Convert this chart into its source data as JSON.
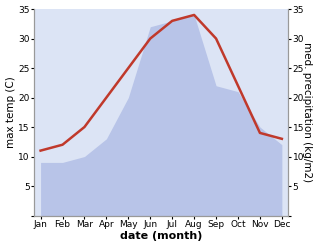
{
  "months": [
    "Jan",
    "Feb",
    "Mar",
    "Apr",
    "May",
    "Jun",
    "Jul",
    "Aug",
    "Sep",
    "Oct",
    "Nov",
    "Dec"
  ],
  "temperature": [
    11,
    12,
    15,
    20,
    25,
    30,
    33,
    34,
    30,
    22,
    14,
    13
  ],
  "precipitation": [
    9,
    9,
    10,
    13,
    20,
    32,
    33,
    34,
    22,
    21,
    15,
    12
  ],
  "temp_color": "#c0392b",
  "precip_fill_color": "#b8c4e8",
  "plot_bg_color": "#dce4f5",
  "background_color": "#ffffff",
  "xlabel": "date (month)",
  "ylabel_left": "max temp (C)",
  "ylabel_right": "med. precipitation (kg/m2)",
  "ylim": [
    0,
    35
  ],
  "yticks": [
    0,
    5,
    10,
    15,
    20,
    25,
    30,
    35
  ],
  "yticklabels": [
    "",
    "5",
    "10",
    "15",
    "20",
    "25",
    "30",
    "35"
  ],
  "axis_fontsize": 7.5,
  "tick_fontsize": 6.5,
  "xlabel_fontsize": 8,
  "linewidth": 1.8
}
